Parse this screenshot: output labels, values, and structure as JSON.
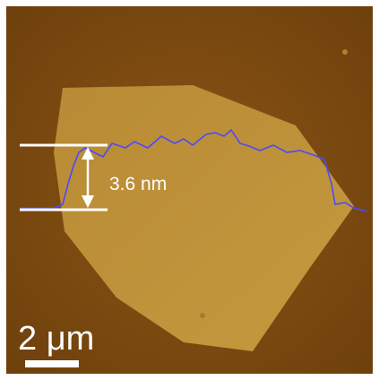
{
  "image": {
    "height_label": "3.6 nm",
    "scale_label": "2 μm"
  }
}
